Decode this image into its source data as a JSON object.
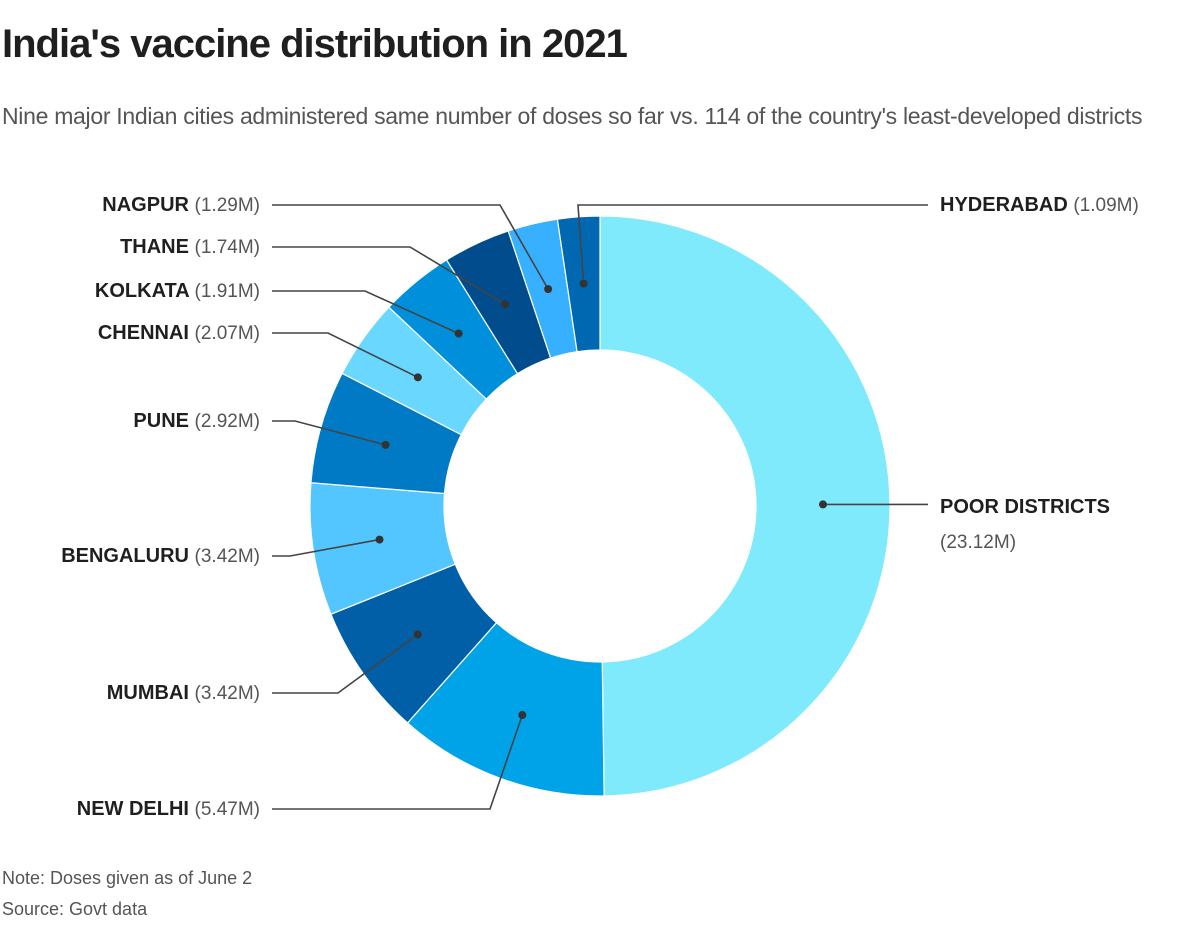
{
  "title": "India's vaccine distribution in 2021",
  "subtitle": "Nine major Indian cities administered same number of doses so far vs. 114 of the country's least-developed districts",
  "note": "Note: Doses given as of June 2",
  "source": "Source: Govt data",
  "chart_data": {
    "type": "pie",
    "variant": "donut",
    "title": "India's vaccine distribution in 2021",
    "unit": "million doses",
    "start": "12 o'clock, clockwise",
    "categories": [
      "POOR DISTRICTS",
      "NEW DELHI",
      "MUMBAI",
      "BENGALURU",
      "PUNE",
      "CHENNAI",
      "KOLKATA",
      "THANE",
      "NAGPUR",
      "HYDERABAD"
    ],
    "values": [
      23.12,
      5.47,
      3.42,
      3.42,
      2.92,
      2.07,
      1.91,
      1.74,
      1.29,
      1.09
    ],
    "value_labels": [
      "(23.12M)",
      "(5.47M)",
      "(3.42M)",
      "(3.42M)",
      "(2.92M)",
      "(2.07M)",
      "(1.91M)",
      "(1.74M)",
      "(1.29M)",
      "(1.09M)"
    ],
    "colors": [
      "#80eafd",
      "#00a2e8",
      "#005fa6",
      "#54c6ff",
      "#007ac5",
      "#6ad7ff",
      "#0090db",
      "#004c8c",
      "#36b0ff",
      "#0068b0"
    ]
  }
}
